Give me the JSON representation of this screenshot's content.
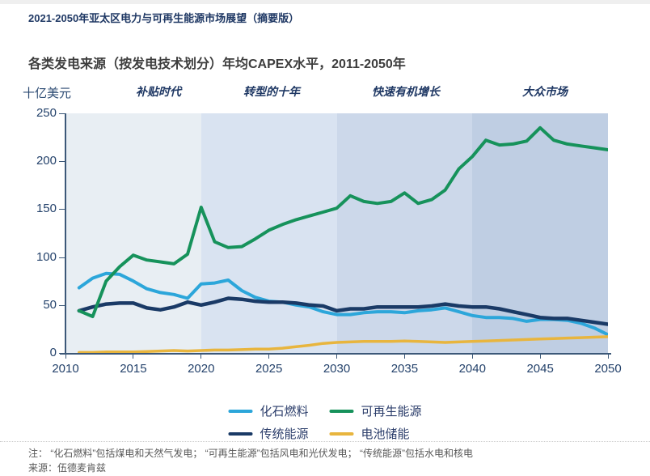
{
  "header": {
    "title": "2021-2050年亚太区电力与可再生能源市场展望（摘要版）"
  },
  "chart": {
    "title": "各类发电来源（按发电技术划分）年均CAPEX水平，2011-2050年",
    "unit_label": "十亿美元",
    "phases": [
      {
        "label": "补贴时代",
        "start": 2010,
        "end": 2020,
        "band_color": "#e8eef3"
      },
      {
        "label": "转型的十年",
        "start": 2020,
        "end": 2030,
        "band_color": "#d9e3f1"
      },
      {
        "label": "快速有机增长",
        "start": 2030,
        "end": 2040,
        "band_color": "#ccd8ea"
      },
      {
        "label": "大众市场",
        "start": 2040,
        "end": 2050,
        "band_color": "#bfcee3"
      }
    ],
    "y_ticks": [
      0,
      50,
      100,
      150,
      200,
      250
    ],
    "x_ticks": [
      2010,
      2015,
      2020,
      2025,
      2030,
      2035,
      2040,
      2045,
      2050
    ]
  },
  "chart_data": {
    "type": "line",
    "title": "各类发电来源（按发电技术划分）年均CAPEX水平，2011-2050年",
    "ylabel": "十亿美元",
    "xlim": [
      2010,
      2050
    ],
    "ylim": [
      0,
      250
    ],
    "grid": false,
    "legend_position": "bottom",
    "x": [
      2011,
      2012,
      2013,
      2014,
      2015,
      2016,
      2017,
      2018,
      2019,
      2020,
      2021,
      2022,
      2023,
      2024,
      2025,
      2026,
      2027,
      2028,
      2029,
      2030,
      2031,
      2032,
      2033,
      2034,
      2035,
      2036,
      2037,
      2038,
      2039,
      2040,
      2041,
      2042,
      2043,
      2044,
      2045,
      2046,
      2047,
      2048,
      2049,
      2050
    ],
    "series": [
      {
        "name": "化石燃料",
        "color": "#2ca6da",
        "values": [
          68,
          78,
          83,
          82,
          75,
          67,
          63,
          61,
          57,
          72,
          73,
          76,
          65,
          58,
          54,
          53,
          50,
          48,
          43,
          40,
          40,
          42,
          43,
          43,
          42,
          44,
          45,
          47,
          43,
          39,
          37,
          37,
          36,
          33,
          35,
          35,
          34,
          31,
          26,
          19
        ]
      },
      {
        "name": "可再生能源",
        "color": "#16925b",
        "values": [
          44,
          38,
          75,
          90,
          102,
          97,
          95,
          93,
          103,
          152,
          116,
          110,
          111,
          119,
          128,
          134,
          139,
          143,
          147,
          151,
          164,
          158,
          156,
          158,
          167,
          156,
          160,
          170,
          192,
          205,
          222,
          217,
          218,
          221,
          235,
          222,
          218,
          216,
          214,
          212
        ]
      },
      {
        "name": "传统能源",
        "color": "#1a3a66",
        "values": [
          44,
          48,
          51,
          52,
          52,
          47,
          45,
          48,
          53,
          50,
          53,
          57,
          56,
          54,
          53,
          53,
          52,
          50,
          49,
          44,
          46,
          46,
          48,
          48,
          48,
          48,
          49,
          51,
          49,
          48,
          48,
          46,
          43,
          40,
          37,
          36,
          36,
          34,
          32,
          30
        ]
      },
      {
        "name": "电池储能",
        "color": "#e8b53e",
        "values": [
          0.5,
          0.5,
          1,
          1,
          1,
          1.5,
          2,
          2.5,
          2,
          2.5,
          3,
          3,
          3.5,
          4,
          4,
          5,
          6.5,
          8,
          10,
          11,
          11.5,
          12,
          12,
          12,
          12.5,
          12,
          11.5,
          11,
          11.5,
          12,
          12.5,
          13,
          13.5,
          14,
          14.5,
          15,
          15.5,
          16,
          16.5,
          17
        ]
      }
    ]
  },
  "legend": {
    "items": [
      {
        "label": "化石燃料",
        "color": "#2ca6da"
      },
      {
        "label": "可再生能源",
        "color": "#16925b"
      },
      {
        "label": "传统能源",
        "color": "#1a3a66"
      },
      {
        "label": "电池储能",
        "color": "#e8b53e"
      }
    ]
  },
  "notes": {
    "note": "注： “化石燃料”包括煤电和天然气发电； “可再生能源”包括风电和光伏发电； “传统能源”包括水电和核电",
    "source": "来源：伍德麦肯兹"
  }
}
